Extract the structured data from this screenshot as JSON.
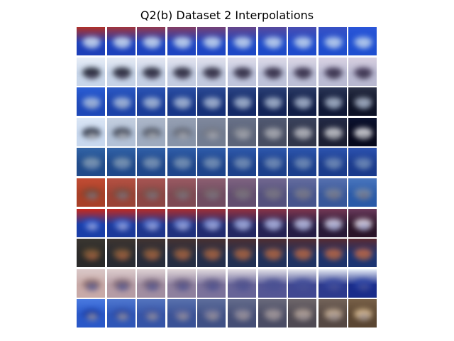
{
  "figure": {
    "title": "Q2(b) Dataset 2 Interpolations"
  },
  "grid": {
    "rows": 10,
    "cols": 10,
    "row_palettes": [
      {
        "start": {
          "bg": "#1d3fb8",
          "top": "#b03028",
          "mid": "#d8e2ef"
        },
        "end": {
          "bg": "#1f4fd0",
          "top": "#2a55d8",
          "mid": "#b8cfee"
        }
      },
      {
        "start": {
          "bg": "#c8d6ea",
          "top": "#e8eef7",
          "mid": "#101420"
        },
        "end": {
          "bg": "#b8b8d0",
          "top": "#d8d0e0",
          "mid": "#3a2e4e"
        }
      },
      {
        "start": {
          "bg": "#1e48b8",
          "top": "#2b5ed4",
          "mid": "#a9c1e6"
        },
        "end": {
          "bg": "#0d1226",
          "top": "#2a3046",
          "mid": "#a8b2c4"
        }
      },
      {
        "start": {
          "bg": "#c8d8ee",
          "top": "#dbe6f5",
          "mid": "#141a2a"
        },
        "end": {
          "bg": "#06081c",
          "top": "#0c1330",
          "mid": "#f5f5f8"
        }
      },
      {
        "start": {
          "bg": "#204a8a",
          "top": "#3264a6",
          "mid": "#8aa2b4"
        },
        "end": {
          "bg": "#1a3a8c",
          "top": "#2c52b0",
          "mid": "#6a86b8"
        }
      },
      {
        "start": {
          "bg": "#a84028",
          "top": "#c24c34",
          "mid": "#7a4a38"
        },
        "end": {
          "bg": "#2a5aa8",
          "top": "#4a76be",
          "mid": "#7a8ca8"
        }
      },
      {
        "start": {
          "bg": "#1a3ea8",
          "top": "#c8281c",
          "mid": "#2a55c8"
        },
        "end": {
          "bg": "#2a1428",
          "top": "#6a3a5c",
          "mid": "#f0e6f0"
        }
      },
      {
        "start": {
          "bg": "#2a2a2a",
          "top": "#3a3630",
          "mid": "#7a5a36"
        },
        "end": {
          "bg": "#1c3472",
          "top": "#5a2a32",
          "mid": "#c86a4a"
        }
      },
      {
        "start": {
          "bg": "#c8aaa8",
          "top": "#dac8c8",
          "mid": "#8a6a68"
        },
        "end": {
          "bg": "#1a2c8a",
          "top": "#e8eef8",
          "mid": "#2a44a8"
        }
      },
      {
        "start": {
          "bg": "#2a58c8",
          "top": "#4a7ae0",
          "mid": "#1a3aa0"
        },
        "end": {
          "bg": "#5a4632",
          "top": "#786048",
          "mid": "#e8c89a"
        }
      }
    ]
  }
}
